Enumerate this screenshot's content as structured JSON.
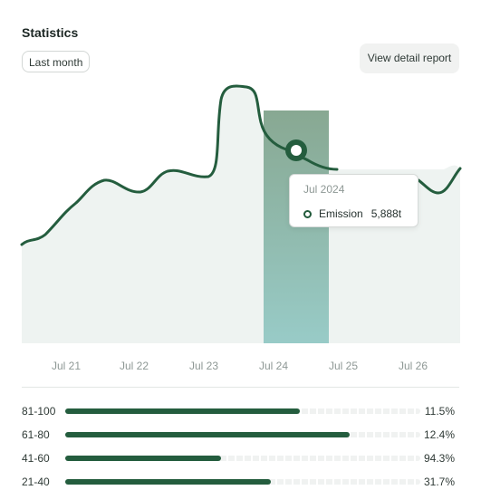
{
  "header": {
    "title": "Statistics",
    "period_label": "Last month",
    "report_button_label": "View detail report"
  },
  "colors": {
    "accent": "#245d3e",
    "area_fill": "#eef3f1",
    "highlight_top": "#88a892",
    "highlight_bottom": "#98cbc7"
  },
  "chart": {
    "x_labels": [
      "Jul 21",
      "Jul 22",
      "Jul 23",
      "Jul 24",
      "Jul 25",
      "Jul 26"
    ],
    "highlight_label": "Jul 24"
  },
  "tooltip": {
    "date": "Jul 2024",
    "series_label": "Emission",
    "value": "5,888t"
  },
  "ranges": [
    {
      "label": "81-100",
      "fraction": 0.66,
      "percent": "11.5%"
    },
    {
      "label": "61-80",
      "fraction": 0.8,
      "percent": "12.4%"
    },
    {
      "label": "41-60",
      "fraction": 0.44,
      "percent": "94.3%"
    },
    {
      "label": "21-40",
      "fraction": 0.58,
      "percent": "31.7%"
    }
  ]
}
